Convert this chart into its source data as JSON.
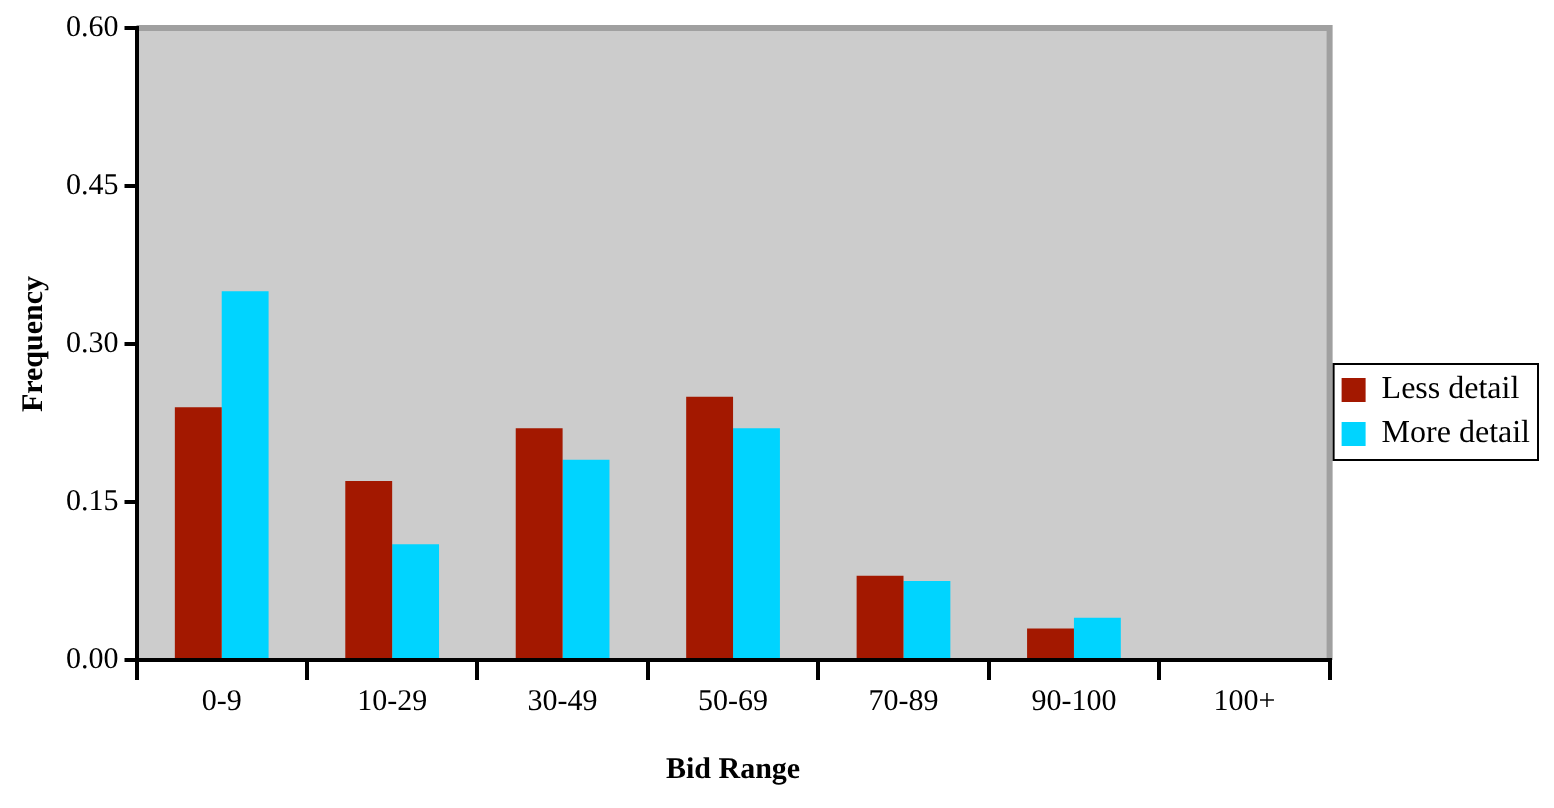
{
  "chart_data": {
    "type": "bar",
    "xlabel": "Bid Range",
    "ylabel": "Frequency",
    "categories": [
      "0-9",
      "10-29",
      "30-49",
      "50-69",
      "70-89",
      "90-100",
      "100+"
    ],
    "series": [
      {
        "name": "Less detail",
        "color": "#a31800",
        "values": [
          0.24,
          0.17,
          0.22,
          0.25,
          0.08,
          0.03,
          0
        ]
      },
      {
        "name": "More detail",
        "color": "#00d4ff",
        "values": [
          0.35,
          0.11,
          0.19,
          0.22,
          0.075,
          0.04,
          0
        ]
      }
    ],
    "ylim": [
      0,
      0.6
    ],
    "yticks": [
      {
        "value": 0,
        "label": "0.00"
      },
      {
        "value": 0.15,
        "label": "0.15"
      },
      {
        "value": 0.3,
        "label": "0.30"
      },
      {
        "value": 0.45,
        "label": "0.45"
      },
      {
        "value": 0.6,
        "label": "0.60"
      }
    ],
    "grid": false,
    "legend": "right"
  }
}
